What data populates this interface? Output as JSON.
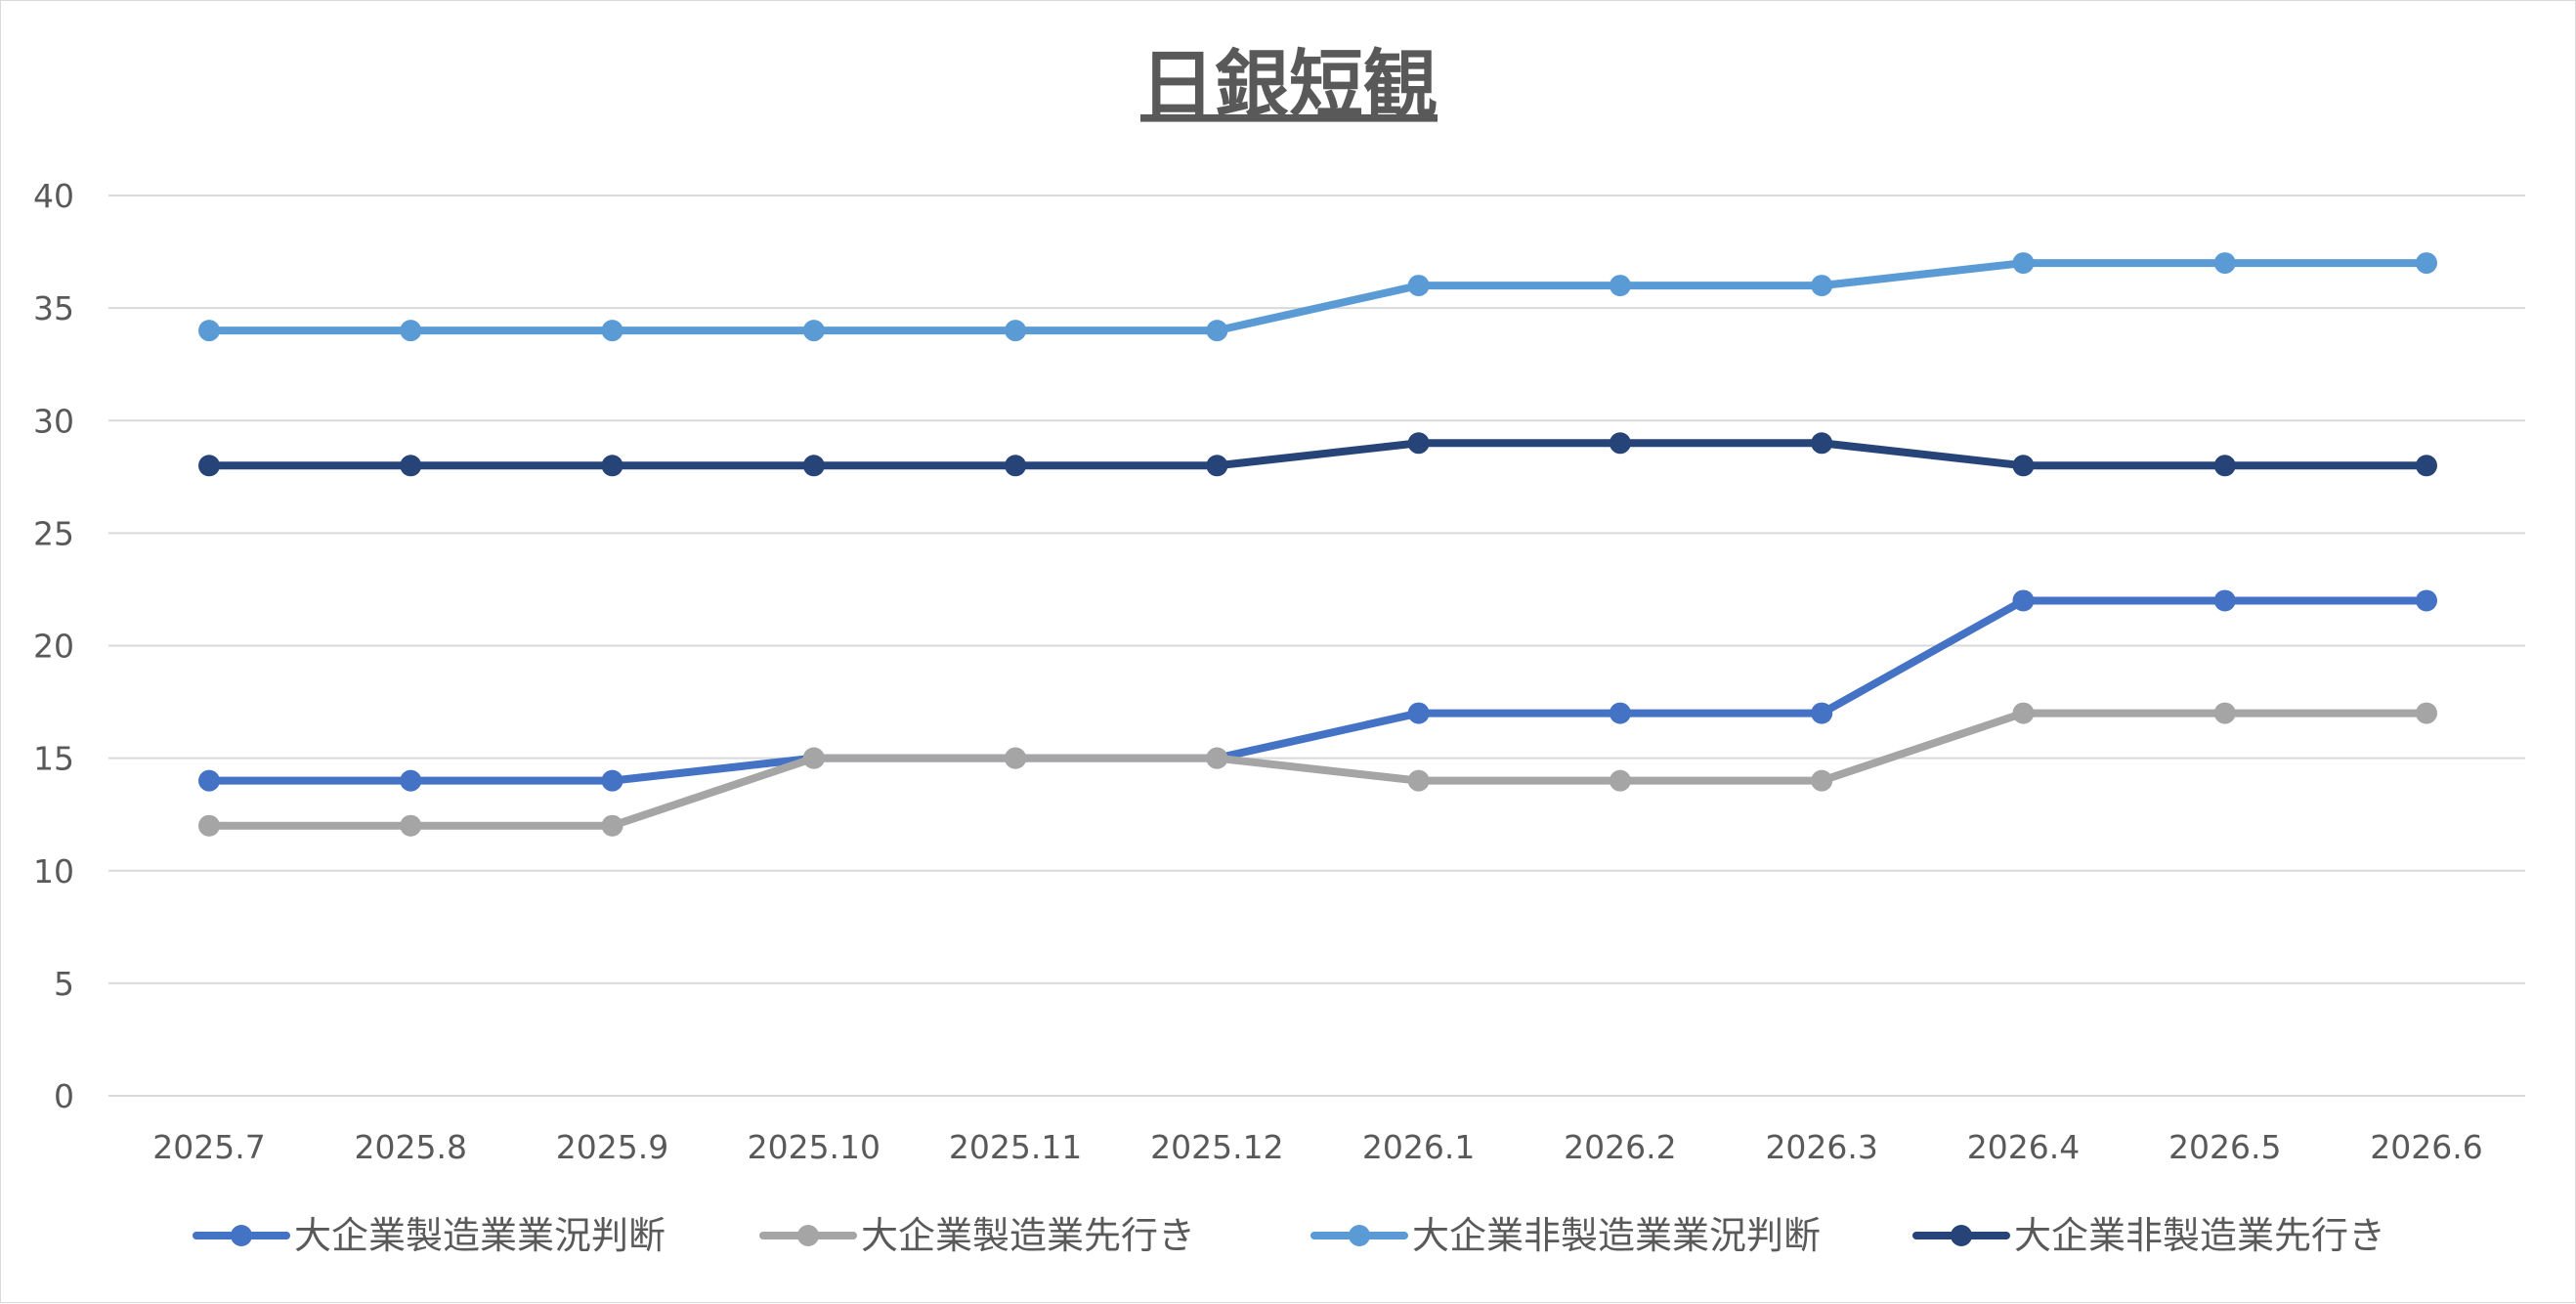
{
  "chart_data": {
    "type": "line",
    "title": "日銀短観",
    "xlabel": "",
    "ylabel": "",
    "categories": [
      "2025.7",
      "2025.8",
      "2025.9",
      "2025.10",
      "2025.11",
      "2025.12",
      "2026.1",
      "2026.2",
      "2026.3",
      "2026.4",
      "2026.5",
      "2026.6"
    ],
    "ylim": [
      0,
      40
    ],
    "yticks": [
      0,
      5,
      10,
      15,
      20,
      25,
      30,
      35,
      40
    ],
    "grid": true,
    "legend_position": "bottom",
    "series": [
      {
        "name": "大企業製造業業況判断",
        "color": "#4472C4",
        "values": [
          14,
          14,
          14,
          15,
          15,
          15,
          17,
          17,
          17,
          22,
          22,
          22
        ]
      },
      {
        "name": "大企業製造業先行き",
        "color": "#A5A5A5",
        "values": [
          12,
          12,
          12,
          15,
          15,
          15,
          14,
          14,
          14,
          17,
          17,
          17
        ]
      },
      {
        "name": "大企業非製造業業況判断",
        "color": "#5B9BD5",
        "values": [
          34,
          34,
          34,
          34,
          34,
          34,
          36,
          36,
          36,
          37,
          37,
          37
        ]
      },
      {
        "name": "大企業非製造業先行き",
        "color": "#264478",
        "values": [
          28,
          28,
          28,
          28,
          28,
          28,
          29,
          29,
          29,
          28,
          28,
          28
        ]
      }
    ]
  },
  "colors": {
    "gridline": "#d9d9d9",
    "text": "#595959",
    "frame": "#d9d9d9"
  }
}
